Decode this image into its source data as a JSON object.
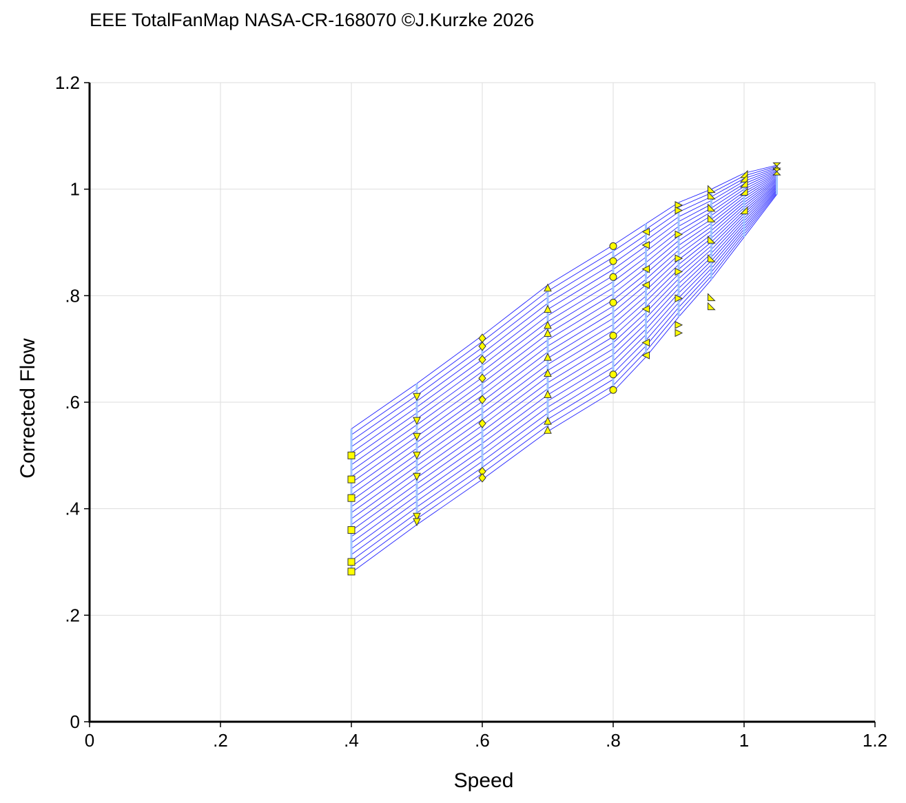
{
  "title": "EEE TotalFanMap NASA-CR-168070 ©J.Kurzke 2026",
  "chart_data": {
    "type": "line",
    "xlabel": "Speed",
    "ylabel": "Corrected Flow",
    "xlim": [
      0,
      1.2
    ],
    "ylim": [
      0,
      1.2
    ],
    "x_tick_labels": [
      "0",
      ".2",
      ".4",
      ".6",
      ".8",
      "1",
      "1.2"
    ],
    "y_tick_labels": [
      "0",
      ".2",
      ".4",
      ".6",
      ".8",
      "1",
      "1.2"
    ],
    "grid": true,
    "colors": {
      "lines": "#1f1fff",
      "speed_lines": "#9fc4ff",
      "markers": "#ffff00",
      "marker_edge": "#333333",
      "grid": "#dddddd"
    },
    "map_envelope": {
      "speeds": [
        0.4,
        0.5,
        0.6,
        0.7,
        0.8,
        0.85,
        0.9,
        0.95,
        1.0,
        1.05
      ],
      "flow_top": [
        0.55,
        0.635,
        0.725,
        0.82,
        0.895,
        0.935,
        0.975,
        1.0,
        1.03,
        1.045
      ],
      "flow_bottom": [
        0.28,
        0.37,
        0.455,
        0.545,
        0.62,
        0.685,
        0.76,
        0.83,
        0.91,
        0.99
      ],
      "line_count": 25
    },
    "series": [
      {
        "speed": 0.4,
        "marker": "square",
        "flow": [
          0.5,
          0.455,
          0.42,
          0.36,
          0.3,
          0.282
        ]
      },
      {
        "speed": 0.5,
        "marker": "triangle-down",
        "flow": [
          0.61,
          0.565,
          0.535,
          0.5,
          0.46,
          0.385,
          0.375
        ]
      },
      {
        "speed": 0.6,
        "marker": "diamond",
        "flow": [
          0.72,
          0.705,
          0.68,
          0.645,
          0.605,
          0.56,
          0.47,
          0.458
        ]
      },
      {
        "speed": 0.7,
        "marker": "triangle-up",
        "flow": [
          0.815,
          0.775,
          0.745,
          0.73,
          0.685,
          0.655,
          0.615,
          0.565,
          0.548
        ]
      },
      {
        "speed": 0.8,
        "marker": "circle",
        "flow": [
          0.893,
          0.865,
          0.835,
          0.787,
          0.725,
          0.652,
          0.623
        ]
      },
      {
        "speed": 0.85,
        "marker": "triangle-left",
        "flow": [
          0.92,
          0.895,
          0.85,
          0.82,
          0.775,
          0.712,
          0.688
        ]
      },
      {
        "speed": 0.9,
        "marker": "triangle-right",
        "flow": [
          0.97,
          0.96,
          0.915,
          0.87,
          0.845,
          0.795,
          0.745,
          0.73
        ]
      },
      {
        "speed": 0.95,
        "marker": "triangle-right-half",
        "flow": [
          1.0,
          0.988,
          0.965,
          0.945,
          0.905,
          0.87,
          0.797,
          0.78
        ]
      },
      {
        "speed": 1.0,
        "marker": "triangle-up-half",
        "flow": [
          1.028,
          1.02,
          1.01,
          0.995,
          0.96
        ]
      },
      {
        "speed": 1.05,
        "marker": "hourglass",
        "flow": [
          1.043,
          1.033
        ]
      }
    ]
  }
}
